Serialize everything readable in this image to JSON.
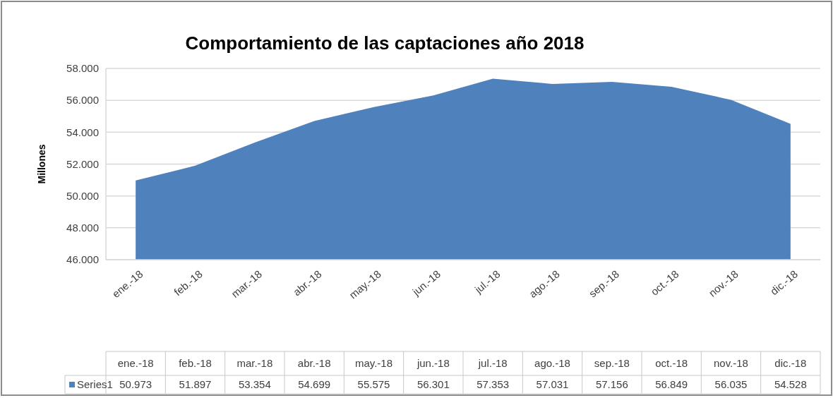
{
  "chart_data": {
    "type": "area",
    "title": "Comportamiento de las captaciones año 2018",
    "ylabel": "Millones",
    "categories": [
      "ene.-18",
      "feb.-18",
      "mar.-18",
      "abr.-18",
      "may.-18",
      "jun.-18",
      "jul.-18",
      "ago.-18",
      "sep.-18",
      "oct.-18",
      "nov.-18",
      "dic.-18"
    ],
    "series": [
      {
        "name": "Series1",
        "color": "#4f81bd",
        "values": [
          50973,
          51897,
          53354,
          54699,
          55575,
          56301,
          57353,
          57031,
          57156,
          56849,
          56035,
          54528
        ],
        "value_labels": [
          "50.973",
          "51.897",
          "53.354",
          "54.699",
          "55.575",
          "56.301",
          "57.353",
          "57.031",
          "57.156",
          "56.849",
          "56.035",
          "54.528"
        ]
      }
    ],
    "ylim": [
      46000,
      58000
    ],
    "yticks": [
      {
        "value": 46000,
        "label": "46.000"
      },
      {
        "value": 48000,
        "label": "48.000"
      },
      {
        "value": 50000,
        "label": "50.000"
      },
      {
        "value": 52000,
        "label": "52.000"
      },
      {
        "value": 54000,
        "label": "54.000"
      },
      {
        "value": 56000,
        "label": "56.000"
      },
      {
        "value": 58000,
        "label": "58.000"
      }
    ],
    "grid": "y",
    "legend": "bottom"
  }
}
